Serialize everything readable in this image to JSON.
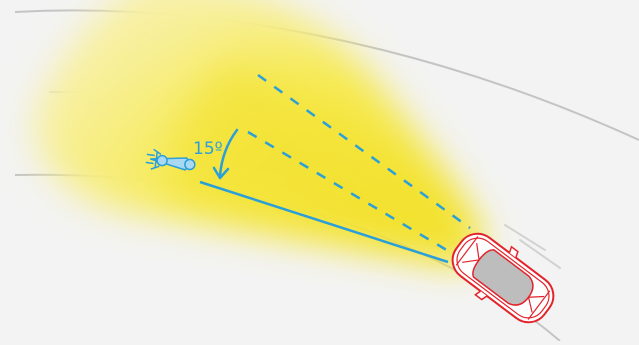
{
  "annotation": {
    "angle_label": "15º"
  },
  "colors": {
    "background": "#f3f3f3",
    "road_edge": "#c4c4c4",
    "lane_marking": "#d2d2d2",
    "beam": "#f5ea4a",
    "guide_line": "#2a9fd8",
    "car_outline": "#e2232b",
    "car_body": "#ffffff",
    "car_roof": "#bdbdbd",
    "motorcycle_fill": "#a9d8f2"
  },
  "icons": [
    "car-icon",
    "motorcycle-icon",
    "angle-arrow-icon"
  ]
}
